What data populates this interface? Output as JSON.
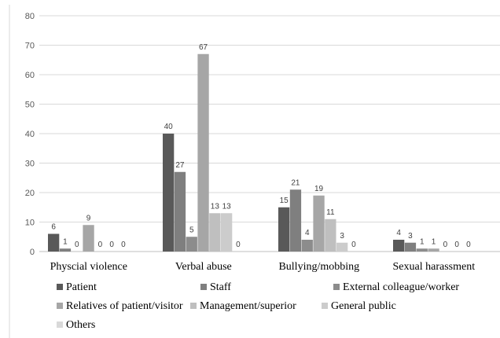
{
  "chart_data": {
    "type": "bar",
    "categories": [
      "Physcial violence",
      "Verbal abuse",
      "Bullying/mobbing",
      "Sexual harassment"
    ],
    "series": [
      {
        "name": "Patient",
        "values": [
          6,
          40,
          15,
          4
        ],
        "color": "#595959"
      },
      {
        "name": "Staff",
        "values": [
          1,
          27,
          21,
          3
        ],
        "color": "#7f7f7f"
      },
      {
        "name": "External colleague/worker",
        "values": [
          0,
          5,
          4,
          1
        ],
        "color": "#8c8c8c"
      },
      {
        "name": "Relatives of patient/visitor",
        "values": [
          9,
          67,
          19,
          1
        ],
        "color": "#a6a6a6"
      },
      {
        "name": "Management/superior",
        "values": [
          0,
          13,
          11,
          0
        ],
        "color": "#bfbfbf"
      },
      {
        "name": "General public",
        "values": [
          0,
          13,
          3,
          0
        ],
        "color": "#cccccc"
      },
      {
        "name": "Others",
        "values": [
          0,
          0,
          0,
          0
        ],
        "color": "#d9d9d9"
      }
    ],
    "yticks": [
      0,
      10,
      20,
      30,
      40,
      50,
      60,
      70,
      80
    ],
    "ylim": [
      0,
      80
    ],
    "grid": true,
    "legend_position": "bottom"
  }
}
